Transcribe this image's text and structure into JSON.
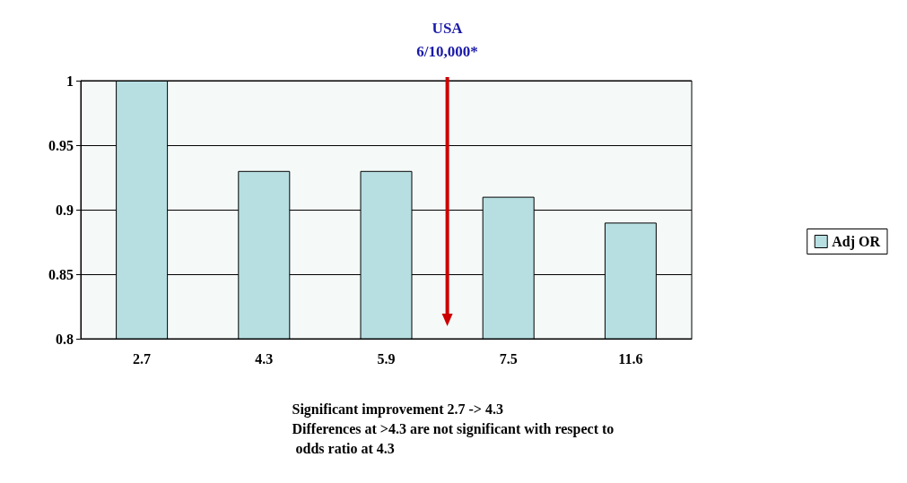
{
  "chart_data": {
    "type": "bar",
    "categories": [
      "2.7",
      "4.3",
      "5.9",
      "7.5",
      "11.6"
    ],
    "series": [
      {
        "name": "Adj OR",
        "color": "#b7dfe2",
        "values": [
          1.0,
          0.93,
          0.93,
          0.91,
          0.89
        ]
      }
    ],
    "ylim": [
      0.8,
      1
    ],
    "yticks": [
      0.8,
      0.85,
      0.9,
      0.95,
      1
    ],
    "grid": "y",
    "legend": "right",
    "annotations": [
      "USA\n6/10,000*",
      "Significant improvement 2.7 -> 4.3",
      "Differences at >4.3 are not significant with respect to odds ratio at 4.3"
    ]
  }
}
